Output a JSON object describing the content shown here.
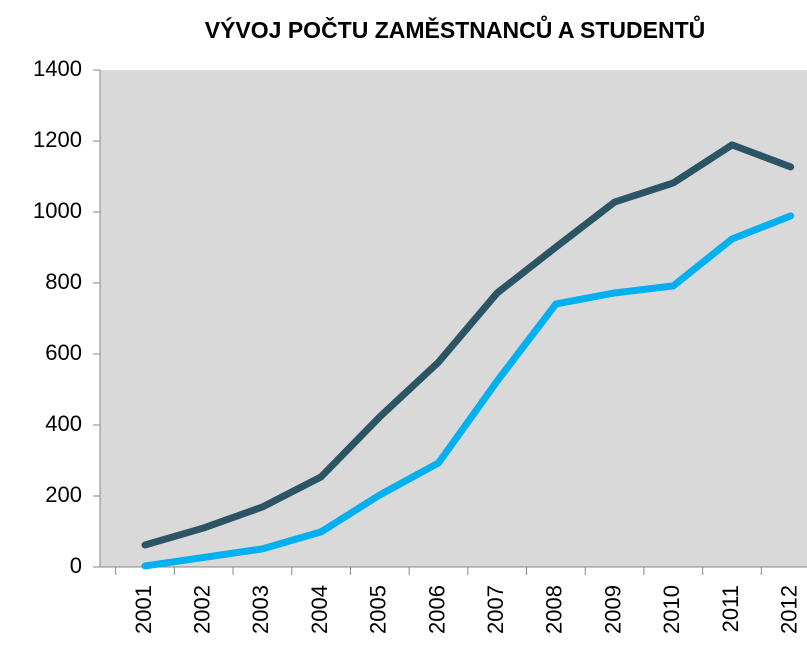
{
  "chart_data": {
    "type": "line",
    "title": "VÝVOJ POČTU ZAMĚSTNANCŮ A STUDENTŮ",
    "categories": [
      "2001",
      "2002",
      "2003",
      "2004",
      "2005",
      "2006",
      "2007",
      "2008",
      "2009",
      "2010",
      "2011",
      "2012"
    ],
    "series": [
      {
        "color": "#2b5564",
        "values": [
          62,
          110,
          169,
          254,
          423,
          577,
          772,
          901,
          1028,
          1082,
          1189,
          1127
        ]
      },
      {
        "color": "#00b0f0",
        "values": [
          3,
          27,
          51,
          99,
          203,
          293,
          524,
          741,
          772,
          792,
          924,
          989
        ]
      }
    ],
    "ylim": [
      0,
      1400
    ],
    "yticks": [
      0,
      200,
      400,
      600,
      800,
      1000,
      1200,
      1400
    ],
    "grid": false
  }
}
